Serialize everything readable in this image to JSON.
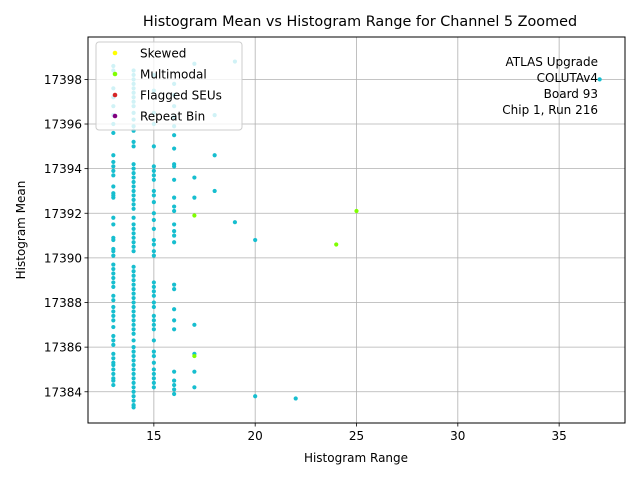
{
  "chart_data": {
    "type": "scatter",
    "title": "Histogram Mean vs Histogram Range for Channel 5 Zoomed",
    "xlabel": "Histogram Range",
    "ylabel": "Histogram Mean",
    "xlim": [
      11.75,
      38.25
    ],
    "ylim": [
      17382.6,
      17399.9
    ],
    "xticks": [
      15,
      20,
      25,
      30,
      35
    ],
    "yticks": [
      17384,
      17386,
      17388,
      17390,
      17392,
      17394,
      17396,
      17398
    ],
    "grid": true,
    "legend_position": "top-left",
    "legend": [
      {
        "label": "Skewed",
        "color": "#ffff00"
      },
      {
        "label": "Multimodal",
        "color": "#7fff00"
      },
      {
        "label": "Flagged SEUs",
        "color": "#d62728"
      },
      {
        "label": "Repeat Bin",
        "color": "#800080"
      }
    ],
    "annotation": [
      "ATLAS Upgrade",
      "COLUTAv4",
      "Board 93",
      "Chip 1, Run 216"
    ],
    "series": [
      {
        "color": "#17becf",
        "points": [
          [
            13,
            17398.6
          ],
          [
            13,
            17398.4
          ],
          [
            13,
            17397.6
          ],
          [
            13,
            17397.2
          ],
          [
            13,
            17396.8
          ],
          [
            13,
            17396.4
          ],
          [
            13,
            17396.0
          ],
          [
            13,
            17395.6
          ],
          [
            13,
            17394.6
          ],
          [
            13,
            17394.3
          ],
          [
            13,
            17394.1
          ],
          [
            13,
            17393.9
          ],
          [
            13,
            17393.7
          ],
          [
            13,
            17393.2
          ],
          [
            13,
            17392.9
          ],
          [
            13,
            17392.8
          ],
          [
            13,
            17392.7
          ],
          [
            13,
            17391.8
          ],
          [
            13,
            17391.5
          ],
          [
            13,
            17390.9
          ],
          [
            13,
            17390.8
          ],
          [
            13,
            17390.4
          ],
          [
            13,
            17390.3
          ],
          [
            13,
            17390.1
          ],
          [
            13,
            17389.7
          ],
          [
            13,
            17389.5
          ],
          [
            13,
            17389.3
          ],
          [
            13,
            17389.1
          ],
          [
            13,
            17388.9
          ],
          [
            13,
            17388.7
          ],
          [
            13,
            17388.3
          ],
          [
            13,
            17388.1
          ],
          [
            13,
            17387.8
          ],
          [
            13,
            17387.6
          ],
          [
            13,
            17387.4
          ],
          [
            13,
            17387.2
          ],
          [
            13,
            17386.9
          ],
          [
            13,
            17386.5
          ],
          [
            13,
            17386.3
          ],
          [
            13,
            17386.1
          ],
          [
            13,
            17385.7
          ],
          [
            13,
            17385.5
          ],
          [
            13,
            17385.3
          ],
          [
            13,
            17385.2
          ],
          [
            13,
            17385.0
          ],
          [
            13,
            17384.8
          ],
          [
            13,
            17384.6
          ],
          [
            13,
            17384.5
          ],
          [
            13,
            17384.3
          ],
          [
            14,
            17398.4
          ],
          [
            14,
            17398.2
          ],
          [
            14,
            17398.0
          ],
          [
            14,
            17397.8
          ],
          [
            14,
            17397.6
          ],
          [
            14,
            17397.4
          ],
          [
            14,
            17397.2
          ],
          [
            14,
            17397.0
          ],
          [
            14,
            17396.8
          ],
          [
            14,
            17396.5
          ],
          [
            14,
            17396.2
          ],
          [
            14,
            17395.9
          ],
          [
            14,
            17395.7
          ],
          [
            14,
            17395.2
          ],
          [
            14,
            17395.0
          ],
          [
            14,
            17394.2
          ],
          [
            14,
            17394.0
          ],
          [
            14,
            17393.8
          ],
          [
            14,
            17393.6
          ],
          [
            14,
            17393.4
          ],
          [
            14,
            17393.2
          ],
          [
            14,
            17393.0
          ],
          [
            14,
            17392.8
          ],
          [
            14,
            17392.6
          ],
          [
            14,
            17392.4
          ],
          [
            14,
            17392.2
          ],
          [
            14,
            17391.8
          ],
          [
            14,
            17391.5
          ],
          [
            14,
            17391.3
          ],
          [
            14,
            17391.1
          ],
          [
            14,
            17390.9
          ],
          [
            14,
            17390.7
          ],
          [
            14,
            17390.5
          ],
          [
            14,
            17390.3
          ],
          [
            14,
            17389.6
          ],
          [
            14,
            17389.4
          ],
          [
            14,
            17389.2
          ],
          [
            14,
            17389.0
          ],
          [
            14,
            17388.8
          ],
          [
            14,
            17388.6
          ],
          [
            14,
            17388.4
          ],
          [
            14,
            17388.2
          ],
          [
            14,
            17388.0
          ],
          [
            14,
            17387.8
          ],
          [
            14,
            17387.6
          ],
          [
            14,
            17387.4
          ],
          [
            14,
            17387.2
          ],
          [
            14,
            17387.0
          ],
          [
            14,
            17386.8
          ],
          [
            14,
            17386.6
          ],
          [
            14,
            17386.3
          ],
          [
            14,
            17386.0
          ],
          [
            14,
            17385.8
          ],
          [
            14,
            17385.6
          ],
          [
            14,
            17385.4
          ],
          [
            14,
            17385.2
          ],
          [
            14,
            17385.0
          ],
          [
            14,
            17384.8
          ],
          [
            14,
            17384.6
          ],
          [
            14,
            17384.4
          ],
          [
            14,
            17384.2
          ],
          [
            14,
            17384.0
          ],
          [
            14,
            17383.8
          ],
          [
            14,
            17383.6
          ],
          [
            14,
            17383.4
          ],
          [
            14,
            17383.3
          ],
          [
            15,
            17398.2
          ],
          [
            15,
            17397.5
          ],
          [
            15,
            17396.5
          ],
          [
            15,
            17396.0
          ],
          [
            15,
            17395.0
          ],
          [
            15,
            17394.1
          ],
          [
            15,
            17393.9
          ],
          [
            15,
            17393.7
          ],
          [
            15,
            17393.5
          ],
          [
            15,
            17393.0
          ],
          [
            15,
            17392.8
          ],
          [
            15,
            17392.5
          ],
          [
            15,
            17392.0
          ],
          [
            15,
            17391.7
          ],
          [
            15,
            17391.3
          ],
          [
            15,
            17390.8
          ],
          [
            15,
            17390.6
          ],
          [
            15,
            17390.3
          ],
          [
            15,
            17390.1
          ],
          [
            15,
            17388.9
          ],
          [
            15,
            17388.7
          ],
          [
            15,
            17388.5
          ],
          [
            15,
            17388.3
          ],
          [
            15,
            17388.0
          ],
          [
            15,
            17387.8
          ],
          [
            15,
            17387.4
          ],
          [
            15,
            17387.2
          ],
          [
            15,
            17387.0
          ],
          [
            15,
            17386.8
          ],
          [
            15,
            17386.3
          ],
          [
            15,
            17385.8
          ],
          [
            15,
            17385.6
          ],
          [
            15,
            17385.3
          ],
          [
            15,
            17385.0
          ],
          [
            15,
            17384.8
          ],
          [
            15,
            17384.6
          ],
          [
            15,
            17384.4
          ],
          [
            15,
            17384.2
          ],
          [
            16,
            17397.8
          ],
          [
            16,
            17397.3
          ],
          [
            16,
            17396.8
          ],
          [
            16,
            17396.3
          ],
          [
            16,
            17395.9
          ],
          [
            16,
            17395.5
          ],
          [
            16,
            17394.9
          ],
          [
            16,
            17394.2
          ],
          [
            16,
            17394.1
          ],
          [
            16,
            17393.5
          ],
          [
            16,
            17392.7
          ],
          [
            16,
            17392.3
          ],
          [
            16,
            17392.1
          ],
          [
            16,
            17391.5
          ],
          [
            16,
            17391.2
          ],
          [
            16,
            17391.0
          ],
          [
            16,
            17390.7
          ],
          [
            16,
            17388.8
          ],
          [
            16,
            17388.6
          ],
          [
            16,
            17387.7
          ],
          [
            16,
            17387.2
          ],
          [
            16,
            17386.8
          ],
          [
            16,
            17384.9
          ],
          [
            16,
            17384.5
          ],
          [
            16,
            17384.3
          ],
          [
            16,
            17384.1
          ],
          [
            16,
            17383.9
          ],
          [
            17,
            17398.7
          ],
          [
            17,
            17393.6
          ],
          [
            17,
            17392.7
          ],
          [
            17,
            17387.0
          ],
          [
            17,
            17385.7
          ],
          [
            17,
            17384.9
          ],
          [
            17,
            17384.2
          ],
          [
            18,
            17396.4
          ],
          [
            18,
            17394.6
          ],
          [
            18,
            17393.0
          ],
          [
            19,
            17398.8
          ],
          [
            19,
            17391.6
          ],
          [
            20,
            17390.8
          ],
          [
            20,
            17383.8
          ],
          [
            22,
            17383.7
          ],
          [
            37,
            17398.0
          ]
        ]
      },
      {
        "color": "#7fff00",
        "points": [
          [
            17,
            17391.9
          ],
          [
            25,
            17392.1
          ],
          [
            24,
            17390.6
          ],
          [
            17,
            17385.6
          ]
        ]
      }
    ]
  }
}
